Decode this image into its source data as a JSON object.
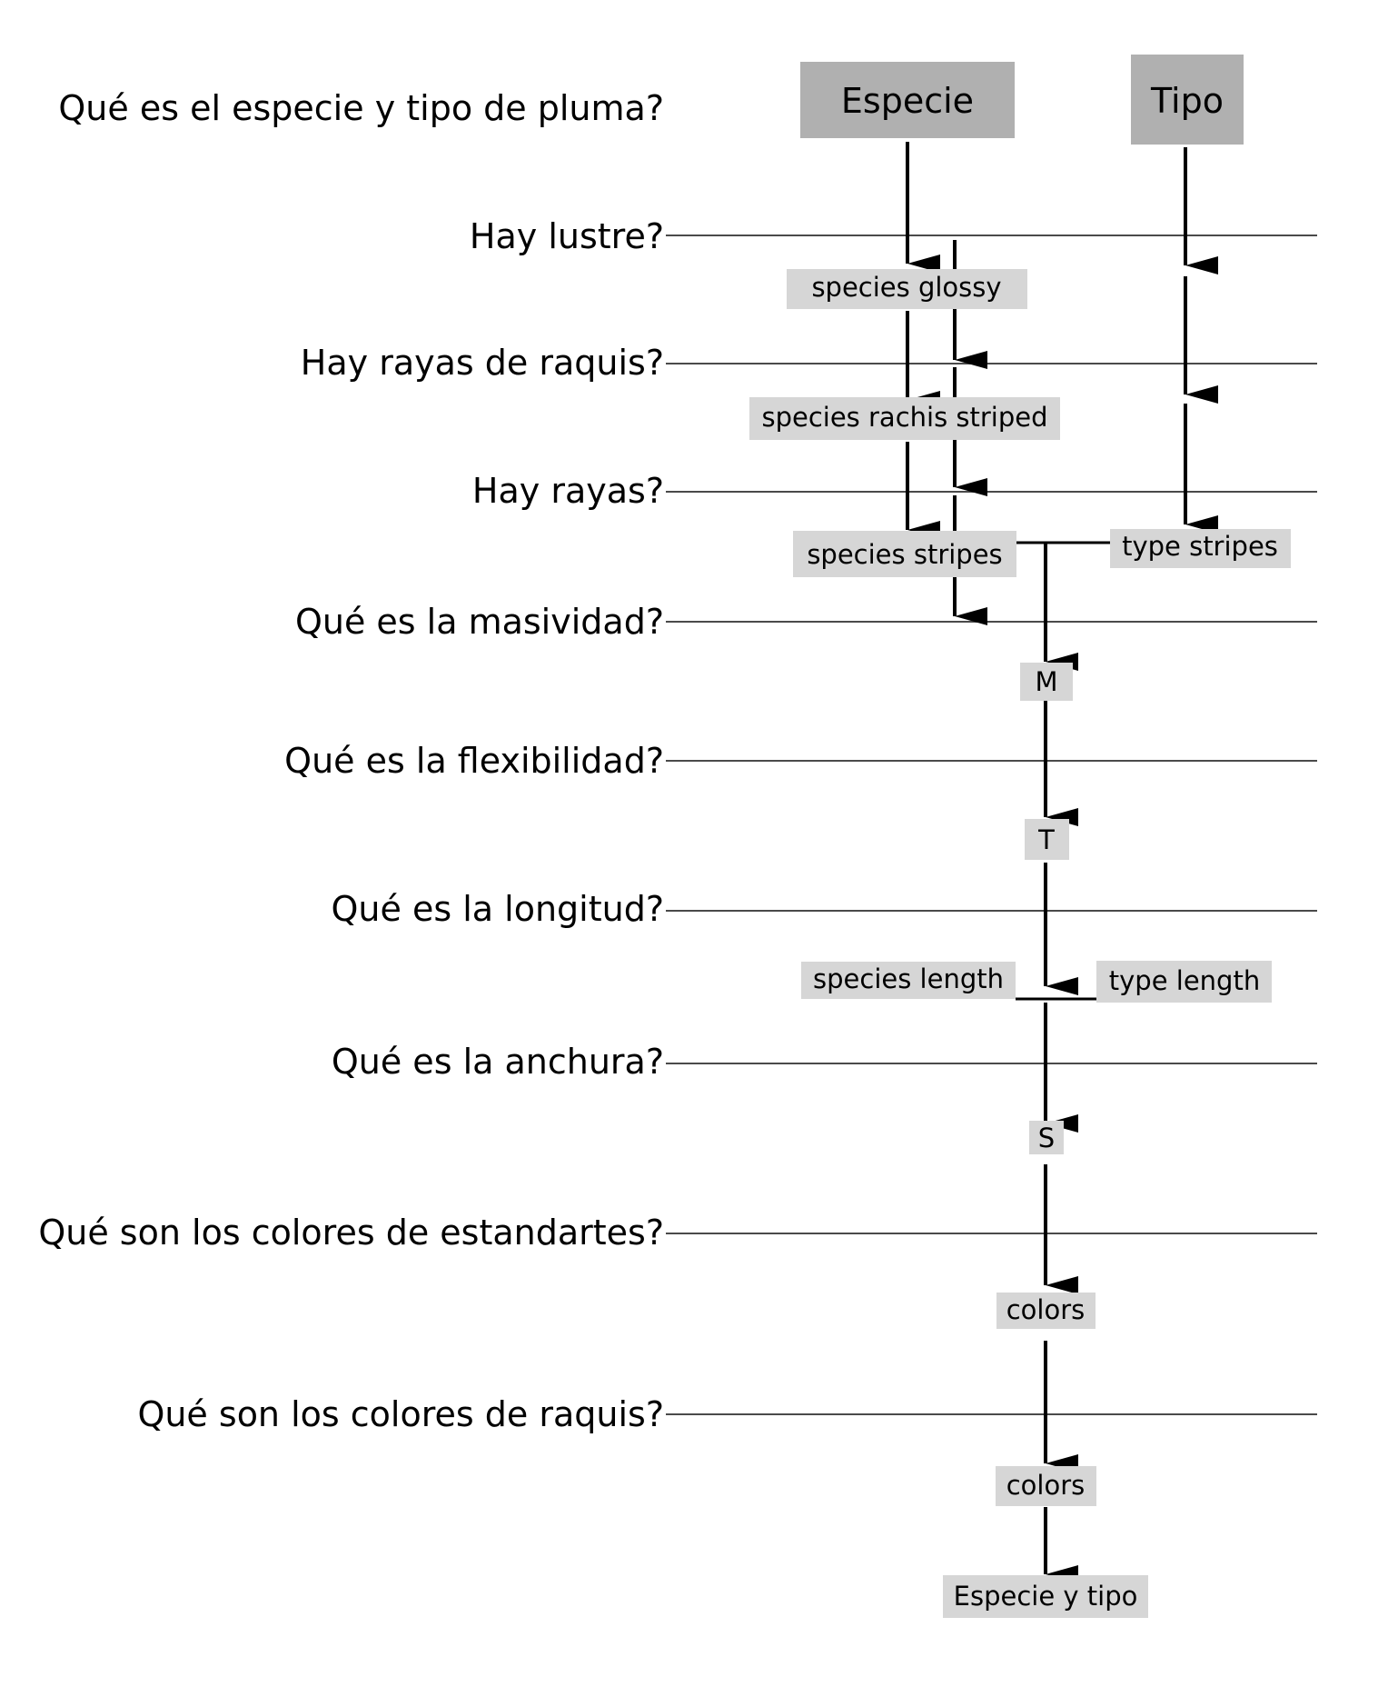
{
  "diagram": {
    "questions": [
      "Qué es el especie y tipo de pluma?",
      "Hay lustre?",
      "Hay rayas de raquis?",
      "Hay rayas?",
      "Qué es la masividad?",
      "Qué es la flexibilidad?",
      "Qué es la longitud?",
      "Qué es la anchura?",
      "Qué son los colores de estandartes?",
      "Qué son los colores de raquis?"
    ],
    "nodes": {
      "especie": "Especie",
      "tipo": "Tipo",
      "species_glossy": "species glossy",
      "species_rachis_striped": "species rachis striped",
      "species_stripes": "species stripes",
      "type_stripes": "type stripes",
      "m": "M",
      "t": "T",
      "species_length": "species length",
      "type_length": "type length",
      "s": "S",
      "colors_vanes": "colors",
      "colors_rachis": "colors",
      "especie_y_tipo": "Especie y tipo"
    },
    "colors": {
      "header_box": "#b0b0b0",
      "node_box": "#d6d6d6",
      "line": "#4a4a4a",
      "arrow": "#000000"
    }
  }
}
